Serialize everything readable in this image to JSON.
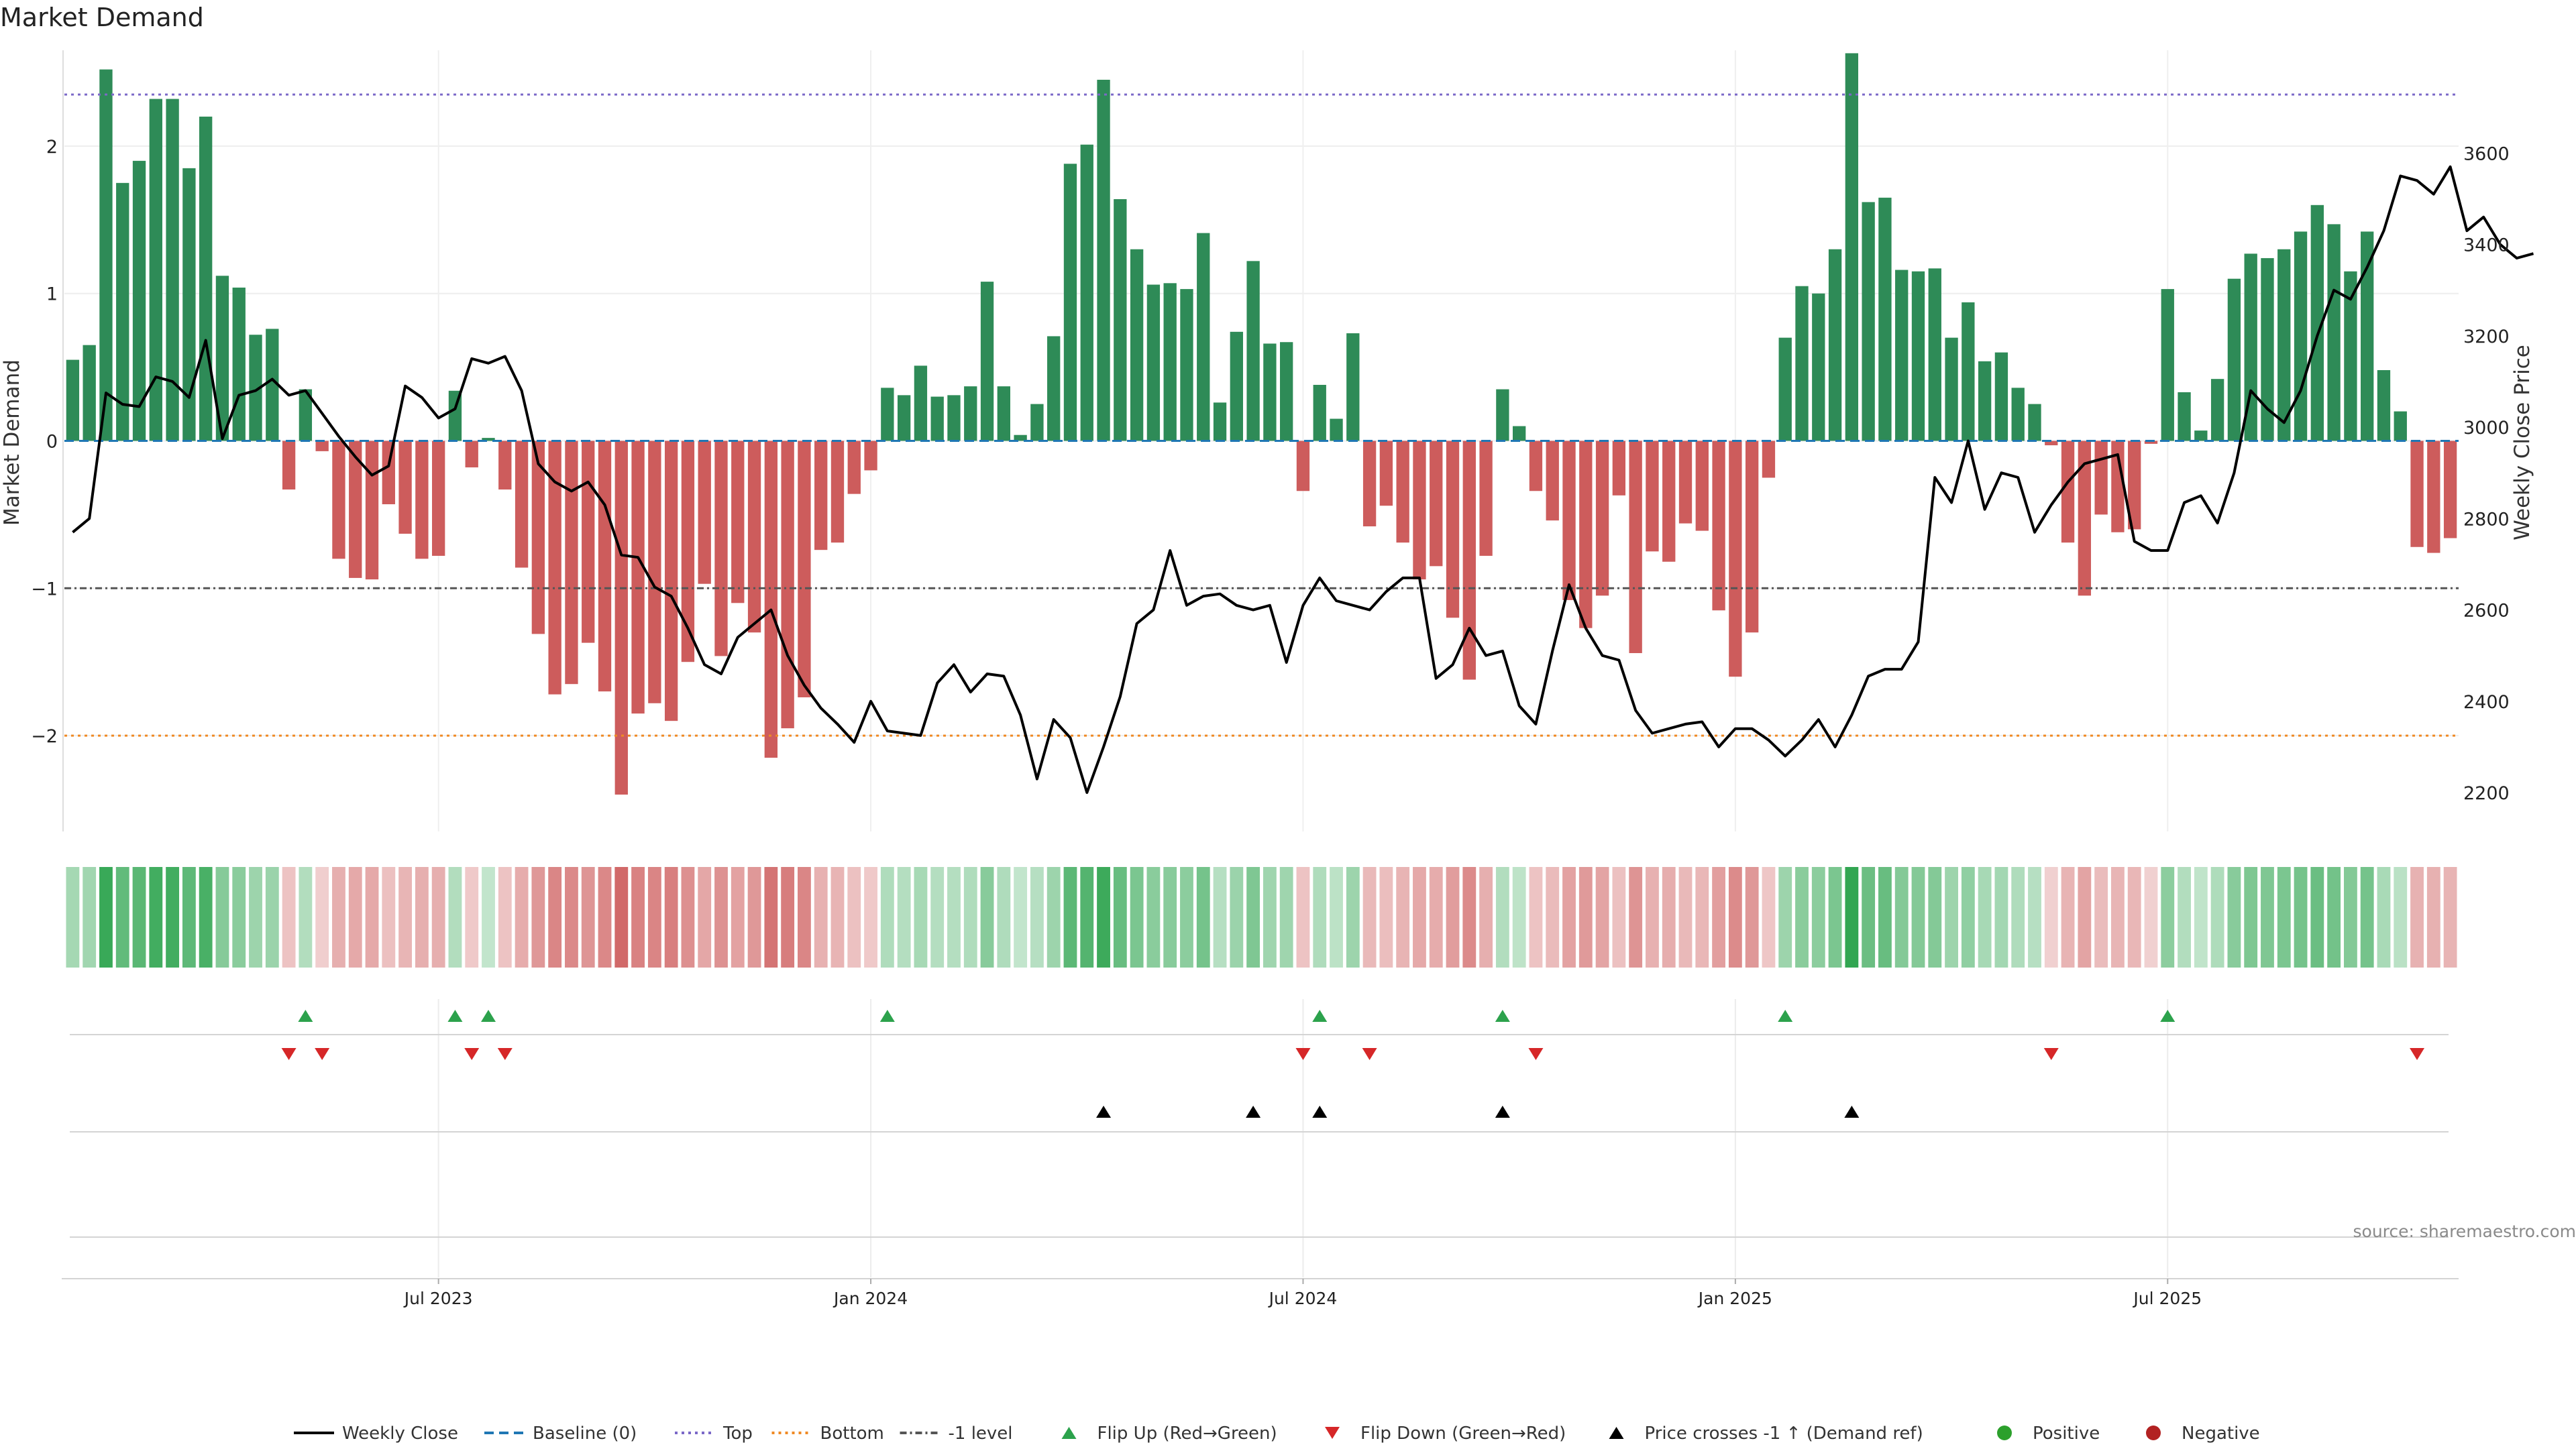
{
  "chart_data": {
    "type": "bar",
    "title": "Market Demand",
    "source": "source: sharemaestro.com",
    "ylabel_left": "Market Demand",
    "ylabel_right": "Weekly Close Price",
    "ylim_left": [
      -2.65,
      2.65
    ],
    "ylim_right": [
      2115,
      3825
    ],
    "yticks_left": [
      -2,
      -1,
      0,
      1,
      2
    ],
    "ytick_labels_left": [
      "−2",
      "−1",
      "0",
      "1",
      "2"
    ],
    "yticks_right": [
      2200,
      2400,
      2600,
      2800,
      3000,
      3200,
      3400,
      3600
    ],
    "x_ticks": [
      {
        "week": 22,
        "label": "Jul 2023"
      },
      {
        "week": 48,
        "label": "Jan 2024"
      },
      {
        "week": 74,
        "label": "Jul 2024"
      },
      {
        "week": 100,
        "label": "Jan 2025"
      },
      {
        "week": 126,
        "label": "Jul 2025"
      }
    ],
    "reference_lines": {
      "top": 2.35,
      "bottom": -2.0,
      "minus_one": -1.0,
      "baseline": 0
    },
    "demand": [
      0.55,
      0.65,
      2.52,
      1.75,
      1.9,
      2.32,
      2.32,
      1.85,
      2.2,
      1.12,
      1.04,
      0.72,
      0.76,
      -0.33,
      0.35,
      -0.07,
      -0.8,
      -0.93,
      -0.94,
      -0.43,
      -0.63,
      -0.8,
      -0.78,
      0.34,
      -0.18,
      0.02,
      -0.33,
      -0.86,
      -1.31,
      -1.72,
      -1.65,
      -1.37,
      -1.7,
      -2.4,
      -1.85,
      -1.78,
      -1.9,
      -1.5,
      -0.97,
      -1.46,
      -1.1,
      -1.3,
      -2.15,
      -1.95,
      -1.74,
      -0.74,
      -0.69,
      -0.36,
      -0.2,
      0.36,
      0.31,
      0.51,
      0.3,
      0.31,
      0.37,
      1.08,
      0.37,
      0.04,
      0.25,
      0.71,
      1.88,
      2.01,
      2.45,
      1.64,
      1.3,
      1.06,
      1.07,
      1.03,
      1.41,
      0.26,
      0.74,
      1.22,
      0.66,
      0.67,
      -0.34,
      0.38,
      0.15,
      0.73,
      -0.58,
      -0.44,
      -0.69,
      -0.94,
      -0.85,
      -1.2,
      -1.62,
      -0.78,
      0.35,
      0.1,
      -0.34,
      -0.54,
      -1.08,
      -1.27,
      -1.05,
      -0.37,
      -1.44,
      -0.75,
      -0.82,
      -0.56,
      -0.61,
      -1.15,
      -1.6,
      -1.3,
      -0.25,
      0.7,
      1.05,
      1.0,
      1.3,
      2.63,
      1.62,
      1.65,
      1.16,
      1.15,
      1.17,
      0.7,
      0.94,
      0.54,
      0.6,
      0.36,
      0.25,
      -0.03,
      -0.69,
      -1.05,
      -0.5,
      -0.62,
      -0.6,
      -0.02,
      1.03,
      0.33,
      0.07,
      0.42,
      1.1,
      1.27,
      1.24,
      1.3,
      1.42,
      1.6,
      1.47,
      1.15,
      1.42,
      0.48,
      0.2,
      -0.72,
      -0.76,
      -0.66
    ],
    "close": [
      2770,
      2800,
      3075,
      3050,
      3045,
      3110,
      3100,
      3065,
      3190,
      2975,
      3070,
      3080,
      3105,
      3070,
      3080,
      3030,
      2980,
      2935,
      2895,
      2915,
      3090,
      3065,
      3020,
      3040,
      3150,
      3140,
      3155,
      3080,
      2920,
      2880,
      2860,
      2880,
      2830,
      2720,
      2715,
      2650,
      2630,
      2560,
      2480,
      2460,
      2540,
      2570,
      2600,
      2500,
      2435,
      2385,
      2350,
      2310,
      2400,
      2335,
      2330,
      2325,
      2440,
      2480,
      2420,
      2460,
      2455,
      2370,
      2230,
      2360,
      2320,
      2200,
      2300,
      2410,
      2570,
      2600,
      2730,
      2610,
      2630,
      2635,
      2610,
      2600,
      2610,
      2485,
      2610,
      2670,
      2620,
      2610,
      2600,
      2640,
      2670,
      2670,
      2450,
      2480,
      2560,
      2500,
      2510,
      2390,
      2350,
      2510,
      2655,
      2560,
      2500,
      2490,
      2380,
      2330,
      2340,
      2350,
      2355,
      2300,
      2340,
      2340,
      2315,
      2280,
      2315,
      2360,
      2300,
      2370,
      2455,
      2470,
      2470,
      2530,
      2890,
      2835,
      2970,
      2820,
      2900,
      2890,
      2770,
      2830,
      2880,
      2920,
      2930,
      2940,
      2750,
      2730,
      2730,
      2835,
      2850,
      2790,
      2900,
      3080,
      3040,
      3010,
      3080,
      3200,
      3300,
      3280,
      3350,
      3430,
      3550,
      3540,
      3510,
      3570,
      3430,
      3460,
      3400,
      3370,
      3380
    ],
    "flip_up_weeks": [
      14,
      23,
      25,
      49,
      75,
      86,
      103,
      126
    ],
    "flip_down_weeks": [
      13,
      15,
      24,
      26,
      74,
      78,
      88,
      119,
      141
    ],
    "price_cross_weeks": [
      62,
      71,
      75,
      86,
      107
    ],
    "legend": [
      {
        "kind": "line",
        "label": "Weekly Close",
        "color": "#000000"
      },
      {
        "kind": "dash",
        "label": "Baseline (0)",
        "color": "#1f77b4"
      },
      {
        "kind": "dot",
        "label": "Top",
        "color": "#7b68c8"
      },
      {
        "kind": "dot",
        "label": "Bottom",
        "color": "#f08a24"
      },
      {
        "kind": "dash-dot",
        "label": "-1 level",
        "color": "#555555"
      },
      {
        "kind": "tri-up",
        "label": "Flip Up (Red→Green)",
        "color": "#2ca24c"
      },
      {
        "kind": "tri-down",
        "label": "Flip Down (Green→Red)",
        "color": "#d62728"
      },
      {
        "kind": "tri-up",
        "label": "Price crosses -1 ↑ (Demand ref)",
        "color": "#000000"
      },
      {
        "kind": "circle",
        "label": "Positive",
        "color": "#2ca02c"
      },
      {
        "kind": "circle",
        "label": "Negative",
        "color": "#b22222"
      }
    ],
    "colors": {
      "positive_bar": "#2e8b57",
      "negative_bar": "#cd5c5c",
      "close_line": "#000000",
      "heat_pos": "#2ea44f",
      "heat_neg": "#cd5c5c"
    }
  }
}
